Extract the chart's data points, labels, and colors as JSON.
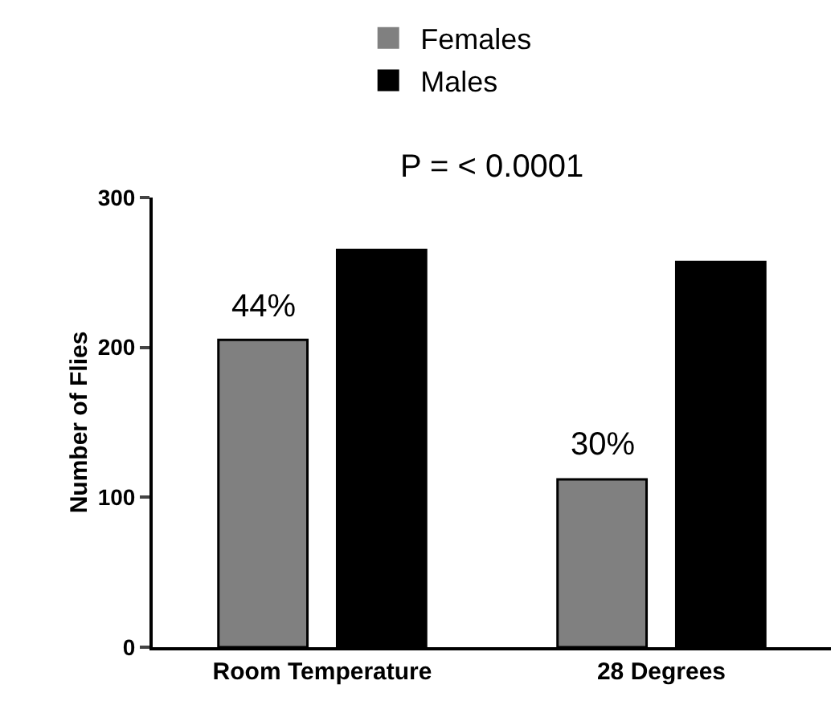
{
  "chart_data": {
    "type": "bar",
    "ylabel": "Number of Flies",
    "categories": [
      "Room Temperature",
      "28 Degrees"
    ],
    "series": [
      {
        "name": "Females",
        "color": "#808080",
        "values": [
          205,
          112
        ]
      },
      {
        "name": "Males",
        "color": "#000000",
        "values": [
          265,
          257
        ]
      }
    ],
    "ylim": [
      0,
      300
    ],
    "yticks": [
      0,
      100,
      200,
      300
    ],
    "grid": false,
    "legend": "top",
    "annotations": [
      "P = < 0.0001",
      "44%",
      "30%"
    ]
  }
}
